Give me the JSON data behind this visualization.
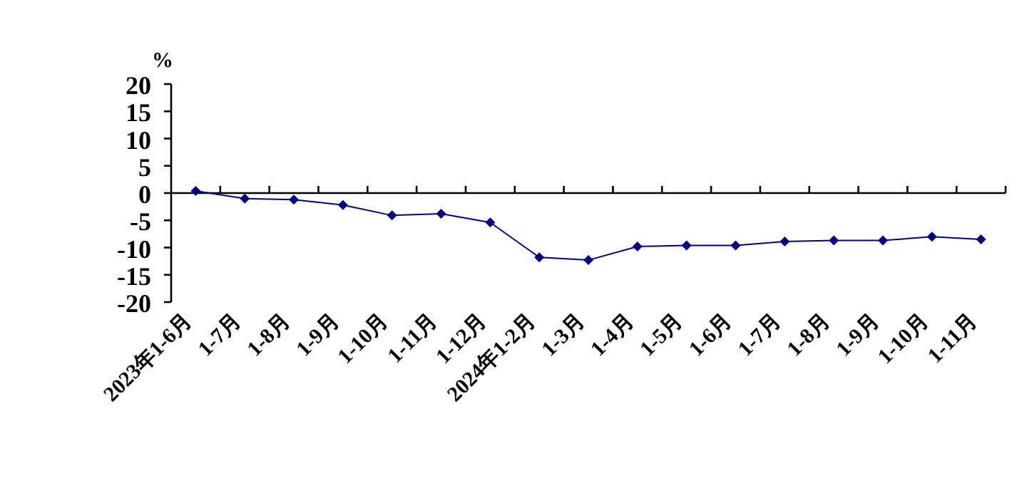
{
  "chart_data": {
    "type": "line",
    "ylabel": "%",
    "categories": [
      "2023年1-6月",
      "1-7月",
      "1-8月",
      "1-9月",
      "1-10月",
      "1-11月",
      "1-12月",
      "2024年1-2月",
      "1-3月",
      "1-4月",
      "1-5月",
      "1-6月",
      "1-7月",
      "1-8月",
      "1-9月",
      "1-10月",
      "1-11月"
    ],
    "values": [
      0.4,
      -1.0,
      -1.2,
      -2.2,
      -4.1,
      -3.8,
      -5.4,
      -11.8,
      -12.3,
      -9.8,
      -9.6,
      -9.6,
      -8.9,
      -8.7,
      -8.7,
      -8.0,
      -8.5
    ],
    "color": "#000080",
    "marker": "diamond",
    "line_style": "solid",
    "ylim": [
      -20,
      20
    ],
    "yticks": [
      -20,
      -15,
      -10,
      -5,
      0,
      5,
      10,
      15,
      20
    ]
  }
}
